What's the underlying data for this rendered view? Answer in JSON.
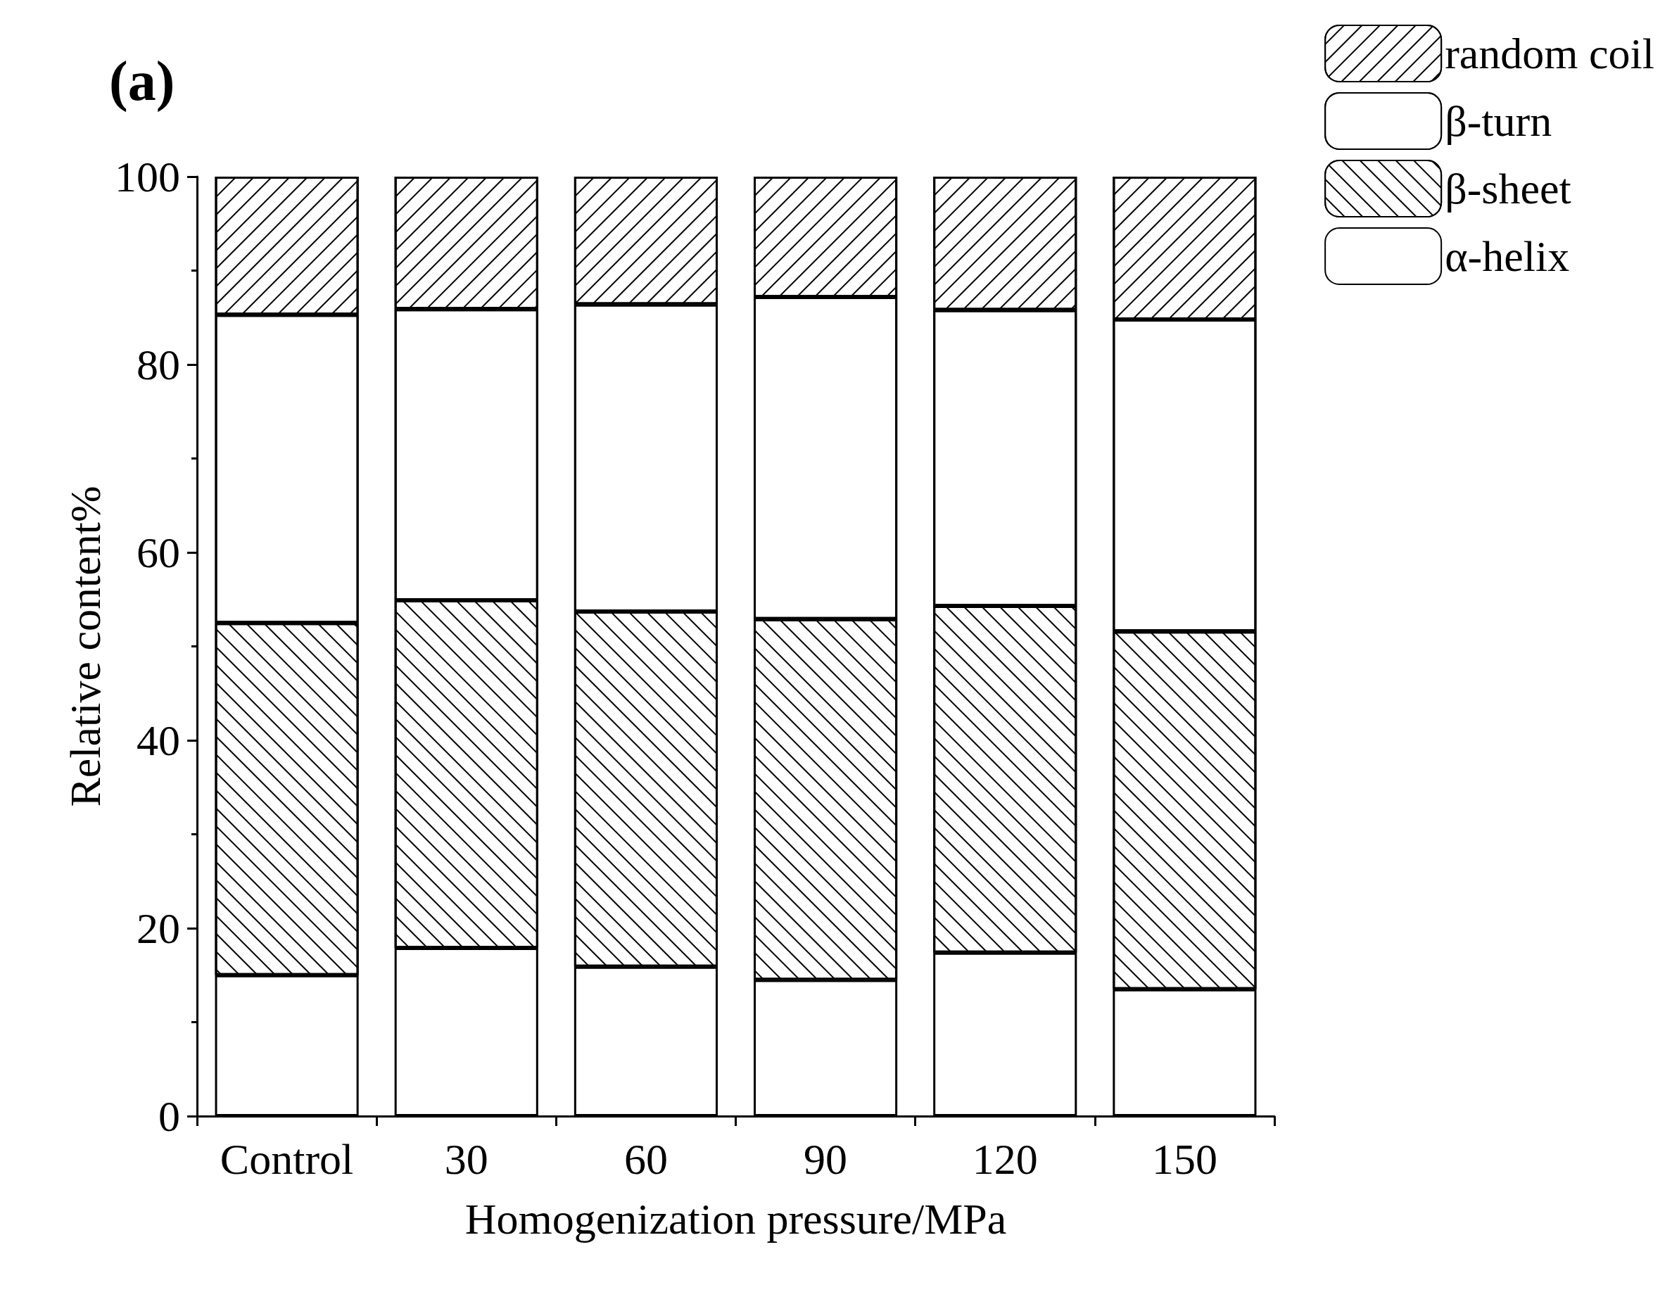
{
  "chart_data": {
    "type": "bar",
    "title": "(a)",
    "xlabel": "Homogenization pressure/MPa",
    "ylabel": "Relative content%",
    "categories": [
      "Control",
      "30",
      "60",
      "90",
      "120",
      "150"
    ],
    "stacked": true,
    "series": [
      {
        "name": "α-helix",
        "color": "#ffffff",
        "values": [
          15.0,
          17.9,
          15.9,
          14.5,
          17.4,
          13.5
        ]
      },
      {
        "name": "β-sheet",
        "color": "#ffffff",
        "values": [
          37.5,
          37.0,
          37.8,
          38.4,
          36.9,
          38.1
        ]
      },
      {
        "name": "β-turn",
        "color": "#ffffff",
        "values": [
          32.8,
          31.0,
          32.7,
          34.3,
          31.5,
          33.2
        ]
      },
      {
        "name": "random coil",
        "color": "#ffffff",
        "values": [
          14.7,
          14.1,
          13.6,
          12.8,
          14.2,
          15.2
        ]
      }
    ],
    "ylim": [
      0,
      100
    ],
    "yticks": [
      0,
      20,
      40,
      60,
      80,
      100
    ],
    "grid": false,
    "legend": "top right"
  }
}
